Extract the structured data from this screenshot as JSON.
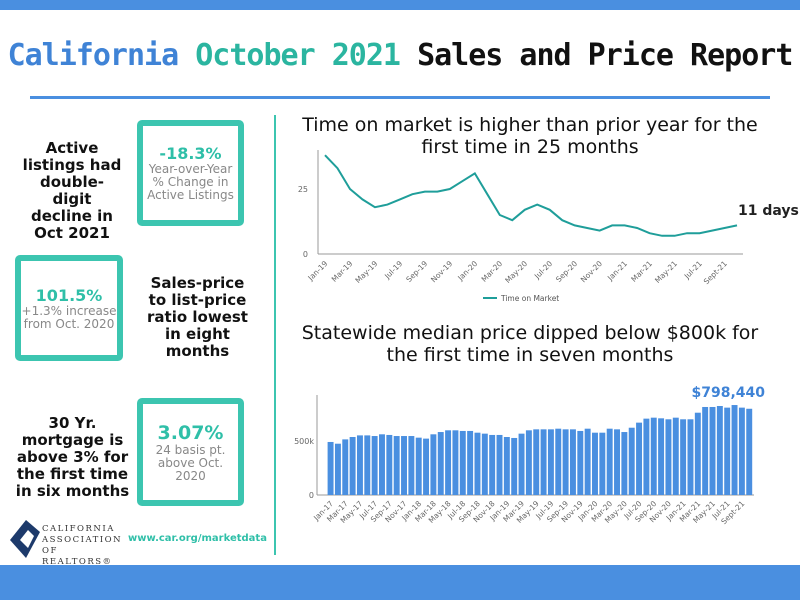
{
  "header": {
    "title_part1": "California",
    "title_part2": "October 2021",
    "title_part3": "Sales and Price Report"
  },
  "colors": {
    "brand_blue": "#4a8fe0",
    "teal": "#3cc5b0",
    "bar": "#4a8fe0",
    "line": "#1f9e9a"
  },
  "stats": [
    {
      "statement": "Active listings had double-digit decline in Oct 2021",
      "value": "-18.3%",
      "detail": "Year-over-Year % Change in Active Listings"
    },
    {
      "statement": "Sales-price to list-price ratio lowest in eight months",
      "value": "101.5%",
      "detail": "+1.3% increase from Oct. 2020"
    },
    {
      "statement": "30 Yr. mortgage is above 3% for the first time in six months",
      "value": "3.07%",
      "detail": "24 basis pt. above Oct. 2020"
    }
  ],
  "footer": {
    "logo_text": "CALIFORNIA ASSOCIATION OF REALTORS®",
    "url": "www.car.org/marketdata"
  },
  "chart_data": [
    {
      "type": "line",
      "title": "Time on market is higher than prior year for the first time in 25 months",
      "annotation": "11 days",
      "legend": [
        "Time on Market"
      ],
      "legend_position": "bottom",
      "ylim": [
        0,
        38
      ],
      "yticks": [
        "0",
        "25"
      ],
      "x": [
        "Jan-19",
        "Feb-19",
        "Mar-19",
        "Apr-19",
        "May-19",
        "Jun-19",
        "Jul-19",
        "Aug-19",
        "Sep-19",
        "Oct-19",
        "Nov-19",
        "Dec-19",
        "Jan-20",
        "Feb-20",
        "Mar-20",
        "Apr-20",
        "May-20",
        "Jun-20",
        "Jul-20",
        "Aug-20",
        "Sep-20",
        "Oct-20",
        "Nov-20",
        "Dec-20",
        "Jan-21",
        "Feb-21",
        "Mar-21",
        "Apr-21",
        "May-21",
        "Jun-21",
        "Jul-21",
        "Aug-21",
        "Sept-21",
        "Oct-21"
      ],
      "xtick_labels": [
        "Jan-19",
        "Mar-19",
        "May-19",
        "Jul-19",
        "Sep-19",
        "Nov-19",
        "Jan-20",
        "Mar-20",
        "May-20",
        "Jul-20",
        "Sep-20",
        "Nov-20",
        "Jan-21",
        "Mar-21",
        "May-21",
        "Jul-21",
        "Sept-21"
      ],
      "series": [
        {
          "name": "Time on Market",
          "values": [
            38,
            33,
            25,
            21,
            18,
            19,
            21,
            23,
            24,
            24,
            25,
            28,
            31,
            23,
            15,
            13,
            17,
            19,
            17,
            13,
            11,
            10,
            9,
            11,
            11,
            10,
            8,
            7,
            7,
            8,
            8,
            9,
            10,
            11
          ]
        }
      ]
    },
    {
      "type": "bar",
      "title": "Statewide median price dipped below $800k for the first time in seven months",
      "annotation": "$798,440",
      "ylim": [
        0,
        850000
      ],
      "yticks": [
        "0",
        "500k"
      ],
      "x": [
        "Jan-17",
        "Feb-17",
        "Mar-17",
        "Apr-17",
        "May-17",
        "Jun-17",
        "Jul-17",
        "Aug-17",
        "Sep-17",
        "Oct-17",
        "Nov-17",
        "Dec-17",
        "Jan-18",
        "Feb-18",
        "Mar-18",
        "Apr-18",
        "May-18",
        "Jun-18",
        "Jul-18",
        "Aug-18",
        "Sep-18",
        "Oct-18",
        "Nov-18",
        "Dec-18",
        "Jan-19",
        "Feb-19",
        "Mar-19",
        "Apr-19",
        "May-19",
        "Jun-19",
        "Jul-19",
        "Aug-19",
        "Sep-19",
        "Oct-19",
        "Nov-19",
        "Dec-19",
        "Jan-20",
        "Feb-20",
        "Mar-20",
        "Apr-20",
        "May-20",
        "Jun-20",
        "Jul-20",
        "Aug-20",
        "Sep-20",
        "Oct-20",
        "Nov-20",
        "Dec-20",
        "Jan-21",
        "Feb-21",
        "Mar-21",
        "Apr-21",
        "May-21",
        "Jun-21",
        "Jul-21",
        "Aug-21",
        "Sept-21",
        "Oct-21"
      ],
      "xtick_labels": [
        "Jan-17",
        "Mar-17",
        "May-17",
        "Jul-17",
        "Sep-17",
        "Nov-17",
        "Jan-18",
        "Mar-18",
        "May-18",
        "Jul-18",
        "Sep-18",
        "Nov-18",
        "Jan-19",
        "Mar-19",
        "May-19",
        "Jul-19",
        "Sep-19",
        "Nov-19",
        "Jan-20",
        "Mar-20",
        "May-20",
        "Jul-20",
        "Sep-20",
        "Nov-20",
        "Jan-21",
        "Mar-21",
        "May-21",
        "Jul-21",
        "Sept-21"
      ],
      "series": [
        {
          "values": [
            491000,
            475000,
            515000,
            537000,
            552000,
            552000,
            546000,
            562000,
            556000,
            546000,
            546000,
            546000,
            531000,
            522000,
            562000,
            583000,
            599000,
            599000,
            593000,
            593000,
            577000,
            568000,
            556000,
            556000,
            537000,
            528000,
            568000,
            599000,
            608000,
            608000,
            608000,
            614000,
            608000,
            608000,
            593000,
            614000,
            577000,
            577000,
            614000,
            608000,
            583000,
            623000,
            670000,
            707000,
            716000,
            710000,
            701000,
            716000,
            701000,
            701000,
            762000,
            815000,
            815000,
            824000,
            809000,
            833000,
            809000,
            798440
          ]
        }
      ]
    }
  ]
}
